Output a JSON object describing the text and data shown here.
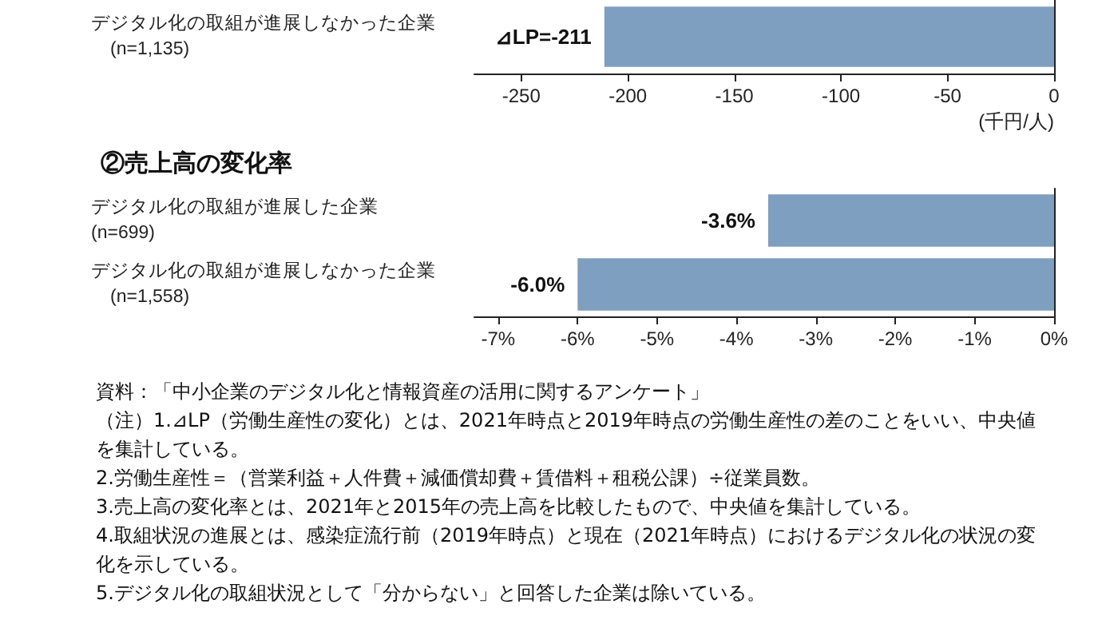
{
  "chart_data": [
    {
      "type": "bar",
      "orientation": "horizontal",
      "xlabel": "(千円/人)",
      "categories": [
        "デジタル化の取組が進展しなかった企業　　(n=1,135)"
      ],
      "values": [
        -211
      ],
      "value_labels": [
        "⊿LP=-211"
      ],
      "color": "#7f9fc1",
      "xlim": [
        -272,
        0
      ],
      "xticks": [
        -250,
        -200,
        -150,
        -100,
        -50,
        0
      ],
      "grid": false
    },
    {
      "type": "bar",
      "orientation": "horizontal",
      "title": "②売上高の変化率",
      "categories": [
        "デジタル化の取組が進展した企業　　(n=699)",
        "デジタル化の取組が進展しなかった企業　　(n=1,558)"
      ],
      "values": [
        -3.6,
        -6.0
      ],
      "value_labels": [
        "-3.6%",
        "-6.0%"
      ],
      "color": "#7f9fc1",
      "xlim": [
        -7.3,
        0
      ],
      "xticks": [
        {
          "value": -7,
          "label": "-7%"
        },
        {
          "value": -6,
          "label": "-6%"
        },
        {
          "value": -5,
          "label": "-5%"
        },
        {
          "value": -4,
          "label": "-4%"
        },
        {
          "value": -3,
          "label": "-3%"
        },
        {
          "value": -2,
          "label": "-2%"
        },
        {
          "value": -1,
          "label": "-1%"
        },
        {
          "value": 0,
          "label": "0%"
        }
      ],
      "grid": false,
      "annotations": [
        "資料：「中小企業のデジタル化と情報資産の活用に関するアンケート」",
        "（注）1.⊿LP（労働生産性の変化）とは、2021年時点と2019年時点の労働生産性の差のことをいい、中央値を集計している。",
        "2.労働生産性＝（営業利益＋人件費＋減価償却費＋賃借料＋租税公課）÷従業員数。",
        "3.売上高の変化率とは、2021年と2015年の売上高を比較したもので、中央値を集計している。",
        "4.取組状況の進展とは、感染症流行前（2019年時点）と現在（2021年時点）におけるデジタル化の状況の変化を示している。",
        "5.デジタル化の取組状況として「分からない」と回答した企業は除いている。"
      ]
    }
  ]
}
